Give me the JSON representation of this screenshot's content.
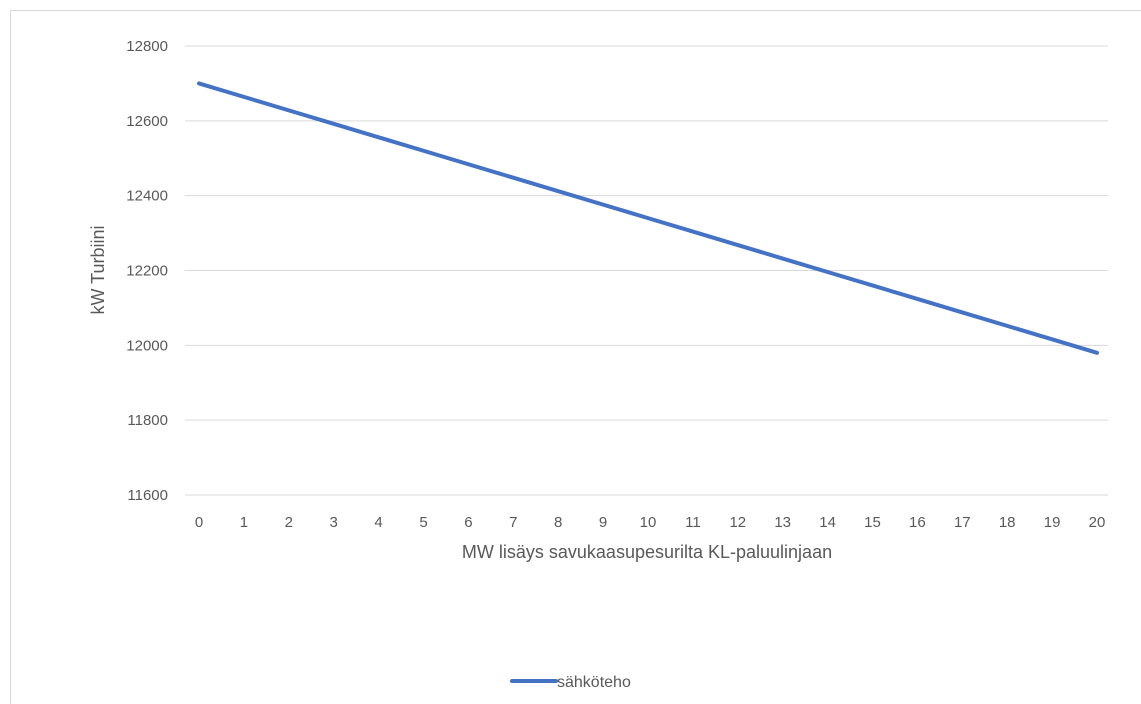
{
  "chart_data": {
    "type": "line",
    "title": "",
    "xlabel": "MW lisäys savukaasupesurilta KL-paluulinjaan",
    "ylabel": "kW Turbiini",
    "x": [
      0,
      1,
      2,
      3,
      4,
      5,
      6,
      7,
      8,
      9,
      10,
      11,
      12,
      13,
      14,
      15,
      16,
      17,
      18,
      19,
      20
    ],
    "x_tick_labels": [
      "0",
      "1",
      "2",
      "3",
      "4",
      "5",
      "6",
      "7",
      "8",
      "9",
      "10",
      "11",
      "12",
      "13",
      "14",
      "15",
      "16",
      "17",
      "18",
      "19",
      "20"
    ],
    "ylim": [
      11600,
      12800
    ],
    "y_ticks": [
      11600,
      11800,
      12000,
      12200,
      12400,
      12600,
      12800
    ],
    "y_tick_labels": [
      "11600",
      "11800",
      "12000",
      "12200",
      "12400",
      "12600",
      "12800"
    ],
    "grid": "horizontal",
    "legend_position": "bottom",
    "series": [
      {
        "name": "sähköteho",
        "color": "#4472C4",
        "values": [
          12700,
          12664,
          12628,
          12592,
          12556,
          12520,
          12484,
          12448,
          12412,
          12376,
          12340,
          12304,
          12268,
          12232,
          12196,
          12160,
          12124,
          12088,
          12052,
          12016,
          11980
        ]
      }
    ]
  }
}
